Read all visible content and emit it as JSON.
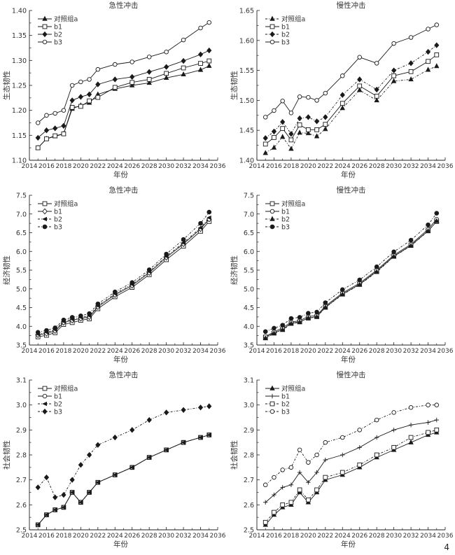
{
  "page_number": "4",
  "chart_data": [
    {
      "id": "eco-acute",
      "type": "line",
      "title": "急性冲击",
      "xlabel": "年份",
      "ylabel": "生态韧性",
      "xlim": [
        2014,
        2036
      ],
      "ylim": [
        1.1,
        1.4
      ],
      "xticks": [
        2014,
        2016,
        2018,
        2020,
        2022,
        2024,
        2026,
        2028,
        2030,
        2032,
        2034,
        2036
      ],
      "yticks": [
        1.1,
        1.15,
        1.2,
        1.25,
        1.3,
        1.35,
        1.4
      ],
      "ytick_decimals": 2,
      "legend_position": "top-left",
      "x": [
        2015,
        2016,
        2017,
        2018,
        2019,
        2020,
        2021,
        2022,
        2024,
        2026,
        2028,
        2030,
        2032,
        2034,
        2035
      ],
      "series": [
        {
          "name": "对照组a",
          "marker": "triangle-filled",
          "dash": "solid",
          "values": [
            1.125,
            1.143,
            1.148,
            1.153,
            1.203,
            1.21,
            1.215,
            1.232,
            1.243,
            1.25,
            1.255,
            1.265,
            1.272,
            1.281,
            1.289
          ]
        },
        {
          "name": "b1",
          "marker": "square-open",
          "dash": "solid",
          "values": [
            1.125,
            1.143,
            1.149,
            1.153,
            1.206,
            1.208,
            1.219,
            1.226,
            1.246,
            1.256,
            1.262,
            1.274,
            1.285,
            1.294,
            1.299
          ]
        },
        {
          "name": "b2",
          "marker": "diamond-filled",
          "dash": "solid",
          "values": [
            1.145,
            1.16,
            1.164,
            1.169,
            1.22,
            1.227,
            1.232,
            1.252,
            1.262,
            1.267,
            1.277,
            1.287,
            1.299,
            1.312,
            1.32
          ]
        },
        {
          "name": "b3",
          "marker": "circle-open",
          "dash": "solid",
          "values": [
            1.175,
            1.19,
            1.194,
            1.2,
            1.25,
            1.257,
            1.262,
            1.282,
            1.292,
            1.297,
            1.307,
            1.317,
            1.341,
            1.365,
            1.376
          ]
        }
      ]
    },
    {
      "id": "eco-chronic",
      "type": "line",
      "title": "慢性冲击",
      "xlabel": "年份",
      "ylabel": "生态韧性",
      "xlim": [
        2014,
        2036
      ],
      "ylim": [
        1.4,
        1.65
      ],
      "xticks": [
        2014,
        2016,
        2018,
        2020,
        2022,
        2024,
        2026,
        2028,
        2030,
        2032,
        2034,
        2036
      ],
      "yticks": [
        1.4,
        1.45,
        1.5,
        1.55,
        1.6,
        1.65
      ],
      "ytick_decimals": 2,
      "legend_position": "top-left",
      "x": [
        2015,
        2016,
        2017,
        2018,
        2019,
        2020,
        2021,
        2022,
        2024,
        2026,
        2028,
        2030,
        2032,
        2034,
        2035
      ],
      "series": [
        {
          "name": "对照组a",
          "marker": "triangle-filled",
          "dash": "dashdot",
          "values": [
            1.412,
            1.421,
            1.439,
            1.419,
            1.446,
            1.445,
            1.44,
            1.452,
            1.487,
            1.517,
            1.5,
            1.532,
            1.535,
            1.551,
            1.557
          ]
        },
        {
          "name": "b1",
          "marker": "square-open",
          "dash": "solid",
          "values": [
            1.427,
            1.438,
            1.453,
            1.434,
            1.459,
            1.451,
            1.451,
            1.46,
            1.495,
            1.524,
            1.507,
            1.541,
            1.548,
            1.565,
            1.576
          ]
        },
        {
          "name": "b2",
          "marker": "diamond-filled",
          "dash": "dashdot",
          "values": [
            1.437,
            1.448,
            1.464,
            1.444,
            1.47,
            1.472,
            1.465,
            1.472,
            1.509,
            1.535,
            1.518,
            1.55,
            1.562,
            1.581,
            1.592
          ]
        },
        {
          "name": "b3",
          "marker": "circle-open",
          "dash": "solid",
          "values": [
            1.472,
            1.483,
            1.499,
            1.479,
            1.506,
            1.505,
            1.5,
            1.512,
            1.541,
            1.572,
            1.562,
            1.595,
            1.605,
            1.619,
            1.626
          ]
        }
      ]
    },
    {
      "id": "econ-acute",
      "type": "line",
      "title": "急性冲击",
      "xlabel": "年份",
      "ylabel": "经济韧性",
      "xlim": [
        2014,
        2036
      ],
      "ylim": [
        3.5,
        7.5
      ],
      "xticks": [
        2014,
        2016,
        2018,
        2020,
        2022,
        2024,
        2026,
        2028,
        2030,
        2032,
        2034,
        2036
      ],
      "yticks": [
        3.5,
        4.0,
        4.5,
        5.0,
        5.5,
        6.0,
        6.5,
        7.0,
        7.5
      ],
      "ytick_decimals": 1,
      "legend_position": "top-left",
      "x": [
        2015,
        2016,
        2017,
        2018,
        2019,
        2020,
        2021,
        2022,
        2024,
        2026,
        2028,
        2030,
        2032,
        2034,
        2035
      ],
      "series": [
        {
          "name": "对照组a",
          "marker": "square-open",
          "dash": "solid",
          "values": [
            3.72,
            3.76,
            3.83,
            4.05,
            4.1,
            4.16,
            4.2,
            4.47,
            4.79,
            5.04,
            5.38,
            5.78,
            6.14,
            6.54,
            6.8
          ]
        },
        {
          "name": "b1",
          "marker": "diamond-open",
          "dash": "solid",
          "values": [
            3.77,
            3.81,
            3.88,
            4.1,
            4.16,
            4.21,
            4.25,
            4.52,
            4.84,
            5.09,
            5.43,
            5.84,
            6.2,
            6.6,
            6.86
          ]
        },
        {
          "name": "b2",
          "marker": "triangle-left-filled",
          "dash": "dashdot",
          "values": [
            3.79,
            3.84,
            3.91,
            4.13,
            4.19,
            4.24,
            4.28,
            4.55,
            4.87,
            5.12,
            5.46,
            5.87,
            6.23,
            6.63,
            6.9
          ]
        },
        {
          "name": "b3",
          "marker": "circle-filled",
          "dash": "dashdot",
          "values": [
            3.84,
            3.89,
            3.96,
            4.17,
            4.24,
            4.28,
            4.34,
            4.6,
            4.92,
            5.17,
            5.51,
            5.93,
            6.32,
            6.75,
            7.05
          ]
        }
      ]
    },
    {
      "id": "econ-chronic",
      "type": "line",
      "title": "慢性冲击",
      "xlabel": "年份",
      "ylabel": "经济韧性",
      "xlim": [
        2014,
        2036
      ],
      "ylim": [
        3.5,
        7.5
      ],
      "xticks": [
        2014,
        2016,
        2018,
        2020,
        2022,
        2024,
        2026,
        2028,
        2030,
        2032,
        2034,
        2036
      ],
      "yticks": [
        3.5,
        4.0,
        4.5,
        5.0,
        5.5,
        6.0,
        6.5,
        7.0,
        7.5
      ],
      "ytick_decimals": 1,
      "legend_position": "top-left",
      "x": [
        2015,
        2016,
        2017,
        2018,
        2019,
        2020,
        2021,
        2022,
        2024,
        2026,
        2028,
        2030,
        2032,
        2034,
        2035
      ],
      "series": [
        {
          "name": "对照组a",
          "marker": "square-open",
          "dash": "solid",
          "values": [
            3.71,
            3.82,
            3.92,
            4.08,
            4.12,
            4.22,
            4.26,
            4.51,
            4.86,
            5.12,
            5.47,
            5.87,
            6.16,
            6.55,
            6.8
          ]
        },
        {
          "name": "b1",
          "marker": "circle-open",
          "dash": "solid",
          "values": [
            3.73,
            3.85,
            3.96,
            4.11,
            4.15,
            4.26,
            4.29,
            4.54,
            4.89,
            5.15,
            5.5,
            5.9,
            6.19,
            6.59,
            6.86
          ]
        },
        {
          "name": "b2",
          "marker": "triangle-filled",
          "dash": "dashdot",
          "values": [
            3.68,
            3.81,
            3.9,
            4.07,
            4.11,
            4.22,
            4.25,
            4.5,
            4.85,
            5.11,
            5.45,
            5.86,
            6.15,
            6.54,
            6.81
          ]
        },
        {
          "name": "b3",
          "marker": "circle-filled",
          "dash": "dashdot",
          "values": [
            3.86,
            3.95,
            4.03,
            4.21,
            4.24,
            4.35,
            4.38,
            4.63,
            4.98,
            5.24,
            5.59,
            5.99,
            6.3,
            6.71,
            7.02
          ]
        }
      ]
    },
    {
      "id": "social-acute",
      "type": "line",
      "title": "急性冲击",
      "xlabel": "年份",
      "ylabel": "社会韧性",
      "xlim": [
        2014,
        2036
      ],
      "ylim": [
        2.5,
        3.1
      ],
      "xticks": [
        2014,
        2016,
        2018,
        2020,
        2022,
        2024,
        2026,
        2028,
        2030,
        2032,
        2034,
        2036
      ],
      "yticks": [
        2.5,
        2.6,
        2.7,
        2.8,
        2.9,
        3.0,
        3.1
      ],
      "ytick_decimals": 1,
      "legend_position": "top-left",
      "x": [
        2015,
        2016,
        2017,
        2018,
        2019,
        2020,
        2021,
        2022,
        2024,
        2026,
        2028,
        2030,
        2032,
        2034,
        2035
      ],
      "series": [
        {
          "name": "对照组a",
          "marker": "square-open",
          "dash": "solid",
          "values": [
            2.52,
            2.56,
            2.58,
            2.59,
            2.65,
            2.61,
            2.65,
            2.69,
            2.72,
            2.75,
            2.79,
            2.82,
            2.85,
            2.87,
            2.88
          ]
        },
        {
          "name": "b1",
          "marker": "circle-open",
          "dash": "solid",
          "values": [
            2.52,
            2.56,
            2.58,
            2.59,
            2.65,
            2.61,
            2.65,
            2.69,
            2.72,
            2.75,
            2.79,
            2.82,
            2.85,
            2.87,
            2.88
          ]
        },
        {
          "name": "b2",
          "marker": "triangle-left-filled",
          "dash": "dashdot",
          "values": [
            2.52,
            2.56,
            2.58,
            2.59,
            2.65,
            2.61,
            2.65,
            2.69,
            2.72,
            2.75,
            2.79,
            2.82,
            2.85,
            2.87,
            2.88
          ]
        },
        {
          "name": "b3",
          "marker": "diamond-filled",
          "dash": "dashdot",
          "values": [
            2.67,
            2.71,
            2.63,
            2.64,
            2.7,
            2.76,
            2.8,
            2.84,
            2.87,
            2.9,
            2.94,
            2.97,
            2.98,
            2.99,
            2.995
          ]
        }
      ]
    },
    {
      "id": "social-chronic",
      "type": "line",
      "title": "慢性冲击",
      "xlabel": "年份",
      "ylabel": "社会韧性",
      "xlim": [
        2014,
        2036
      ],
      "ylim": [
        2.5,
        3.1
      ],
      "xticks": [
        2014,
        2016,
        2018,
        2020,
        2022,
        2024,
        2026,
        2028,
        2030,
        2032,
        2034,
        2036
      ],
      "yticks": [
        2.5,
        2.6,
        2.7,
        2.8,
        2.9,
        3.0,
        3.1
      ],
      "ytick_decimals": 1,
      "legend_position": "top-left",
      "x": [
        2015,
        2016,
        2017,
        2018,
        2019,
        2020,
        2021,
        2022,
        2024,
        2026,
        2028,
        2030,
        2032,
        2034,
        2035
      ],
      "series": [
        {
          "name": "对照组a",
          "marker": "triangle-filled",
          "dash": "solid",
          "values": [
            2.52,
            2.56,
            2.59,
            2.6,
            2.65,
            2.61,
            2.65,
            2.7,
            2.72,
            2.75,
            2.79,
            2.82,
            2.85,
            2.88,
            2.89
          ]
        },
        {
          "name": "b1",
          "marker": "plus",
          "dash": "solid",
          "values": [
            2.61,
            2.64,
            2.67,
            2.68,
            2.73,
            2.69,
            2.73,
            2.78,
            2.8,
            2.83,
            2.87,
            2.9,
            2.92,
            2.93,
            2.94
          ]
        },
        {
          "name": "b2",
          "marker": "square-open",
          "dash": "dashdot",
          "values": [
            2.53,
            2.57,
            2.6,
            2.61,
            2.66,
            2.62,
            2.66,
            2.71,
            2.73,
            2.76,
            2.8,
            2.83,
            2.87,
            2.89,
            2.9
          ]
        },
        {
          "name": "b3",
          "marker": "circle-open",
          "dash": "dashdot",
          "values": [
            2.68,
            2.71,
            2.74,
            2.75,
            2.82,
            2.77,
            2.8,
            2.85,
            2.87,
            2.9,
            2.94,
            2.97,
            2.99,
            3.0,
            3.0
          ]
        }
      ]
    }
  ]
}
